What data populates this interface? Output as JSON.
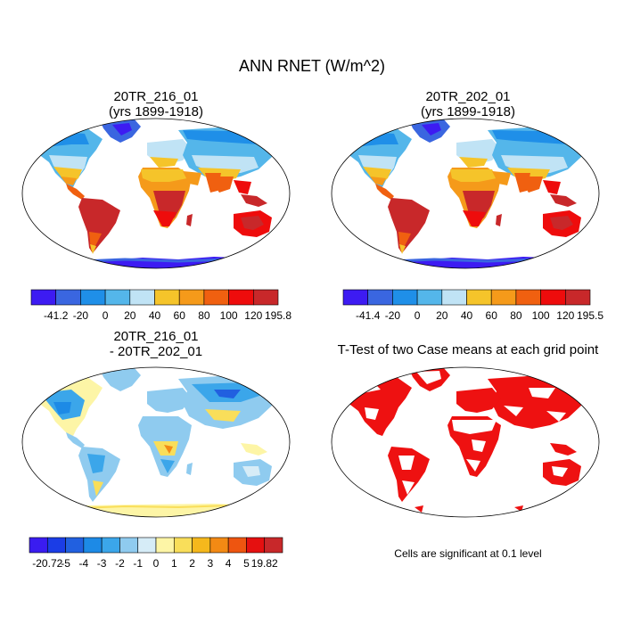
{
  "main_title": "ANN RNET (W/m^2)",
  "panels": {
    "top_left": {
      "title_line1": "20TR_216_01",
      "title_line2": "(yrs 1899-1918)"
    },
    "top_right": {
      "title_line1": "20TR_202_01",
      "title_line2": "(yrs 1899-1918)"
    },
    "bottom_left": {
      "title_line1": "20TR_216_01",
      "title_line2": "- 20TR_202_01"
    },
    "bottom_right": {
      "title_line1": "T-Test of two Case means at each grid point"
    }
  },
  "colorbars": {
    "top_left": {
      "labels": [
        "-41.2",
        "-20",
        "0",
        "20",
        "40",
        "60",
        "80",
        "100",
        "120",
        "195.8"
      ],
      "colors": [
        "#3d1bf2",
        "#3a66e0",
        "#1f8fe8",
        "#54b6ea",
        "#c0e3f5",
        "#f5c42a",
        "#f59a1a",
        "#f06010",
        "#ee0c0c",
        "#c8282a"
      ]
    },
    "top_right": {
      "labels": [
        "-41.4",
        "-20",
        "0",
        "20",
        "40",
        "60",
        "80",
        "100",
        "120",
        "195.5"
      ],
      "colors": [
        "#3d1bf2",
        "#3a66e0",
        "#1f8fe8",
        "#54b6ea",
        "#c0e3f5",
        "#f5c42a",
        "#f59a1a",
        "#f06010",
        "#ee0c0c",
        "#c8282a"
      ]
    },
    "bottom_left": {
      "labels": [
        "-20.72",
        "-5",
        "-4",
        "-3",
        "-2",
        "-1",
        "0",
        "1",
        "2",
        "3",
        "4",
        "5",
        "19.82"
      ],
      "colors": [
        "#3a1cf0",
        "#1b3de6",
        "#2160e0",
        "#1d8ae6",
        "#3ba6ea",
        "#8fcbef",
        "#d6ecf7",
        "#fdf5a6",
        "#f9de5a",
        "#f5b81c",
        "#f38a14",
        "#ee5510",
        "#e51010",
        "#c8282a"
      ]
    }
  },
  "significance_note": "Cells are significant at 0.1 level",
  "palette": {
    "land_grey": "#eeeeee",
    "significant_red": "#ee1111"
  }
}
